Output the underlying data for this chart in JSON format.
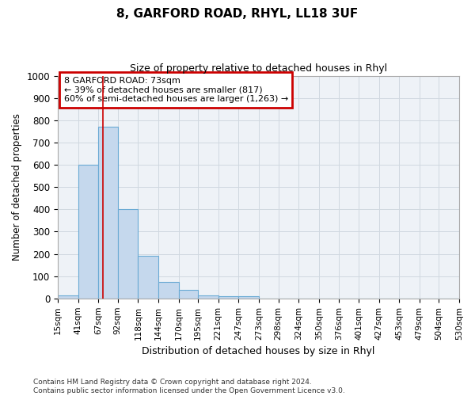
{
  "title": "8, GARFORD ROAD, RHYL, LL18 3UF",
  "subtitle": "Size of property relative to detached houses in Rhyl",
  "xlabel": "Distribution of detached houses by size in Rhyl",
  "ylabel": "Number of detached properties",
  "footnote": "Contains HM Land Registry data © Crown copyright and database right 2024.\nContains public sector information licensed under the Open Government Licence v3.0.",
  "bin_edges": [
    15,
    41,
    67,
    92,
    118,
    144,
    170,
    195,
    221,
    247,
    273,
    298,
    324,
    350,
    376,
    401,
    427,
    453,
    479,
    504,
    530
  ],
  "bar_heights": [
    15,
    600,
    770,
    400,
    190,
    75,
    40,
    15,
    10,
    10,
    0,
    0,
    0,
    0,
    0,
    0,
    0,
    0,
    0,
    0
  ],
  "bar_facecolor": "#c5d8ed",
  "bar_edgecolor": "#6aaad4",
  "property_size": 73,
  "property_line_color": "#cc0000",
  "annotation_text": "8 GARFORD ROAD: 73sqm\n← 39% of detached houses are smaller (817)\n60% of semi-detached houses are larger (1,263) →",
  "annotation_box_color": "#cc0000",
  "ylim": [
    0,
    1000
  ],
  "yticks": [
    0,
    100,
    200,
    300,
    400,
    500,
    600,
    700,
    800,
    900,
    1000
  ],
  "grid_color": "#d0d8e0",
  "background_color": "#eef2f7",
  "tick_labels": [
    "15sqm",
    "41sqm",
    "67sqm",
    "92sqm",
    "118sqm",
    "144sqm",
    "170sqm",
    "195sqm",
    "221sqm",
    "247sqm",
    "273sqm",
    "298sqm",
    "324sqm",
    "350sqm",
    "376sqm",
    "401sqm",
    "427sqm",
    "453sqm",
    "479sqm",
    "504sqm",
    "530sqm"
  ]
}
